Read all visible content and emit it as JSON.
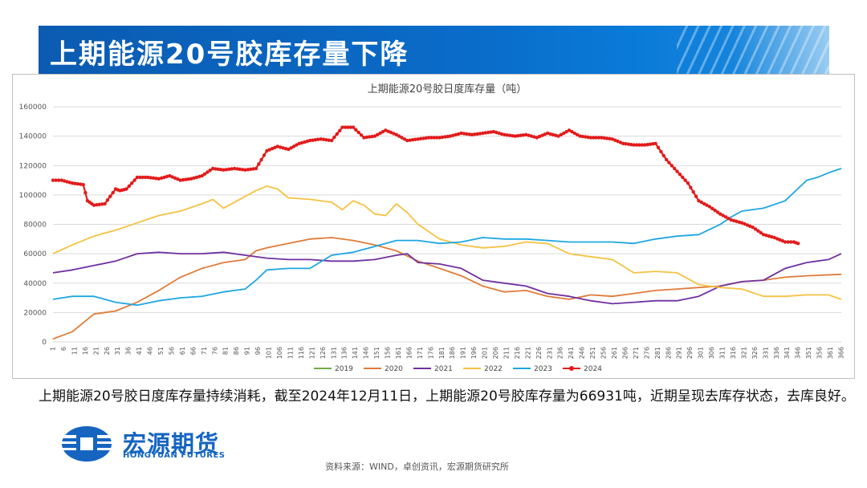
{
  "header": {
    "title": "上期能源20号胶库存量下降"
  },
  "chart_data": {
    "type": "line",
    "title": "上期能源20号胶日度库存量（吨）",
    "xlabel": "",
    "ylabel": "",
    "ylim": [
      0,
      160000
    ],
    "yticks": [
      0,
      20000,
      40000,
      60000,
      80000,
      100000,
      120000,
      140000,
      160000
    ],
    "xlim": [
      1,
      366
    ],
    "xticks": [
      1,
      6,
      11,
      16,
      21,
      26,
      31,
      36,
      41,
      46,
      51,
      56,
      61,
      66,
      71,
      76,
      81,
      86,
      91,
      96,
      101,
      106,
      111,
      116,
      121,
      126,
      131,
      136,
      141,
      146,
      151,
      156,
      161,
      166,
      171,
      176,
      181,
      186,
      191,
      196,
      201,
      206,
      211,
      216,
      221,
      226,
      231,
      236,
      241,
      246,
      251,
      256,
      261,
      266,
      271,
      276,
      281,
      286,
      291,
      296,
      301,
      306,
      311,
      316,
      321,
      326,
      331,
      336,
      341,
      346,
      351,
      356,
      361,
      366
    ],
    "grid": true,
    "legend_position": "bottom",
    "series": [
      {
        "name": "2019",
        "color": "#70ad47",
        "x": [],
        "values": []
      },
      {
        "name": "2020",
        "color": "#e07b39",
        "x": [
          1,
          10,
          15,
          20,
          30,
          40,
          50,
          60,
          70,
          80,
          90,
          95,
          100,
          110,
          120,
          130,
          140,
          150,
          160,
          170,
          180,
          190,
          200,
          210,
          220,
          230,
          240,
          250,
          260,
          270,
          280,
          290,
          300,
          310,
          320,
          330,
          340,
          350,
          366
        ],
        "values": [
          2000,
          7000,
          13000,
          19000,
          21000,
          27000,
          35000,
          44000,
          50000,
          54000,
          56000,
          62000,
          64000,
          67000,
          70000,
          71000,
          69000,
          66000,
          62000,
          55000,
          50000,
          45000,
          38000,
          34000,
          35000,
          31000,
          29000,
          32000,
          31000,
          33000,
          35000,
          36000,
          37000,
          38000,
          41000,
          42000,
          44000,
          45000,
          46000
        ]
      },
      {
        "name": "2021",
        "color": "#7030a0",
        "x": [
          1,
          10,
          20,
          30,
          40,
          50,
          60,
          70,
          80,
          90,
          100,
          110,
          120,
          130,
          140,
          150,
          160,
          165,
          170,
          180,
          190,
          200,
          210,
          220,
          230,
          240,
          250,
          260,
          270,
          280,
          290,
          300,
          310,
          320,
          330,
          340,
          350,
          360,
          366
        ],
        "values": [
          47000,
          49000,
          52000,
          55000,
          60000,
          61000,
          60000,
          60000,
          61000,
          59000,
          57000,
          56000,
          56000,
          55000,
          55000,
          56000,
          59000,
          60000,
          54000,
          53000,
          50000,
          42000,
          40000,
          38000,
          33000,
          31000,
          28000,
          26000,
          27000,
          28000,
          28000,
          31000,
          38000,
          41000,
          42000,
          50000,
          54000,
          56000,
          60000
        ]
      },
      {
        "name": "2022",
        "color": "#f5c242",
        "x": [
          1,
          10,
          20,
          30,
          40,
          50,
          60,
          70,
          75,
          80,
          90,
          95,
          100,
          105,
          110,
          120,
          130,
          135,
          140,
          145,
          150,
          155,
          160,
          165,
          170,
          180,
          190,
          200,
          210,
          220,
          230,
          240,
          250,
          260,
          270,
          280,
          290,
          300,
          310,
          320,
          330,
          340,
          350,
          360,
          366
        ],
        "values": [
          60000,
          66000,
          72000,
          76000,
          81000,
          86000,
          89000,
          94000,
          97000,
          91000,
          99000,
          103000,
          106000,
          104000,
          98000,
          97000,
          95000,
          90000,
          96000,
          93000,
          87000,
          86000,
          94000,
          88000,
          80000,
          70000,
          66000,
          64000,
          65000,
          68000,
          67000,
          60000,
          58000,
          56000,
          47000,
          48000,
          47000,
          39000,
          37000,
          36000,
          31000,
          31000,
          32000,
          32000,
          29000
        ]
      },
      {
        "name": "2023",
        "color": "#1ea7e1",
        "x": [
          1,
          10,
          20,
          30,
          40,
          50,
          60,
          70,
          80,
          90,
          95,
          100,
          110,
          120,
          130,
          140,
          150,
          160,
          170,
          180,
          190,
          200,
          210,
          220,
          230,
          240,
          250,
          260,
          270,
          280,
          290,
          300,
          310,
          315,
          320,
          330,
          340,
          345,
          350,
          355,
          360,
          366
        ],
        "values": [
          29000,
          31000,
          31000,
          27000,
          25000,
          28000,
          30000,
          31000,
          34000,
          36000,
          42000,
          49000,
          50000,
          50000,
          59000,
          61000,
          65000,
          69000,
          69000,
          67000,
          68000,
          71000,
          70000,
          70000,
          69000,
          68000,
          68000,
          68000,
          67000,
          70000,
          72000,
          73000,
          80000,
          85000,
          89000,
          91000,
          96000,
          103000,
          110000,
          112000,
          115000,
          118000
        ]
      },
      {
        "name": "2024",
        "color": "#e31b1b",
        "x": [
          1,
          5,
          10,
          15,
          17,
          20,
          25,
          30,
          32,
          35,
          40,
          45,
          50,
          55,
          60,
          65,
          70,
          75,
          80,
          85,
          90,
          95,
          100,
          105,
          110,
          115,
          120,
          125,
          130,
          135,
          140,
          145,
          150,
          155,
          160,
          165,
          170,
          175,
          180,
          185,
          190,
          195,
          200,
          205,
          210,
          215,
          220,
          225,
          230,
          235,
          240,
          245,
          250,
          255,
          260,
          265,
          270,
          275,
          280,
          285,
          290,
          295,
          300,
          305,
          310,
          315,
          320,
          325,
          330,
          335,
          340,
          344,
          346
        ],
        "values": [
          110000,
          110000,
          108000,
          107000,
          96000,
          93000,
          94000,
          104000,
          103000,
          104000,
          112000,
          112000,
          111000,
          113000,
          110000,
          111000,
          113000,
          118000,
          117000,
          118000,
          117000,
          118000,
          130000,
          133000,
          131000,
          135000,
          137000,
          138000,
          137000,
          146000,
          146000,
          139000,
          140000,
          144000,
          141000,
          137000,
          138000,
          139000,
          139000,
          140000,
          142000,
          141000,
          142000,
          143000,
          141000,
          140000,
          141000,
          139000,
          142000,
          140000,
          144000,
          140000,
          139000,
          139000,
          138000,
          135000,
          134000,
          134000,
          135000,
          124000,
          116000,
          108000,
          96000,
          92000,
          87000,
          83000,
          81000,
          78000,
          73000,
          71000,
          68000,
          68000,
          67000
        ]
      }
    ]
  },
  "description": "上期能源20号胶日度库存量持续消耗，截至2024年12月11日，上期能源20号胶库存量为66931吨，近期呈现去库存状态，去库良好。",
  "logo": {
    "name": "宏源期货",
    "name_en": "HONGYUAN FUTURES"
  },
  "source": "资料来源：WIND，卓创资讯，宏源期货研究所"
}
